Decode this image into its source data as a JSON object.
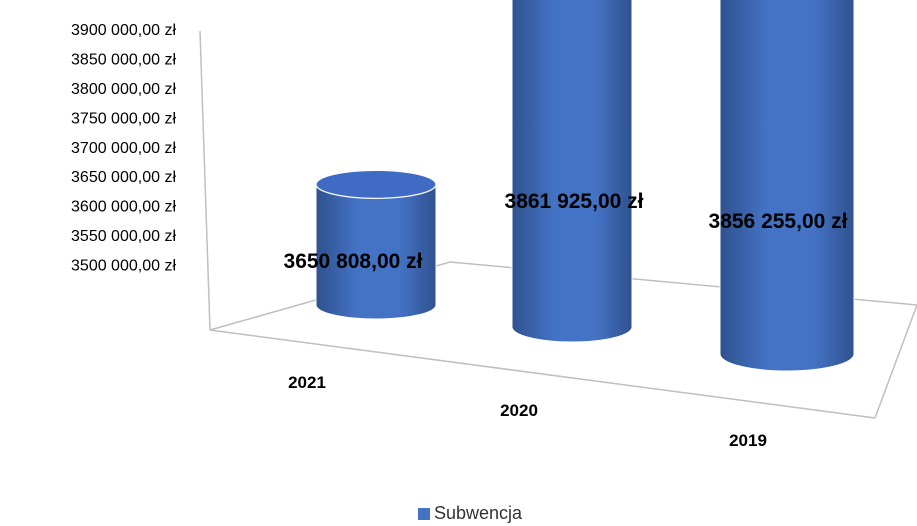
{
  "chart_data": {
    "type": "bar",
    "style": "3d-cylinder",
    "categories": [
      "2021",
      "2020",
      "2019"
    ],
    "series": [
      {
        "name": "Subwencja",
        "values": [
          3650808.0,
          3861925.0,
          3856255.0
        ]
      }
    ],
    "data_labels": [
      "3650 808,00 zł",
      "3861 925,00 zł",
      "3856 255,00 zł"
    ],
    "y_ticks": [
      "3500 000,00 zł",
      "3550 000,00 zł",
      "3600 000,00 zł",
      "3650 000,00 zł",
      "3700 000,00 zł",
      "3750 000,00 zł",
      "3800 000,00 zł",
      "3850 000,00 zł",
      "3900 000,00 zł"
    ],
    "ylim": [
      3500000,
      3900000
    ],
    "legend_position": "bottom",
    "colors": {
      "bar": "#4472c4",
      "bar_dark": "#2f528f",
      "bar_top": "#3f6bc5"
    }
  }
}
